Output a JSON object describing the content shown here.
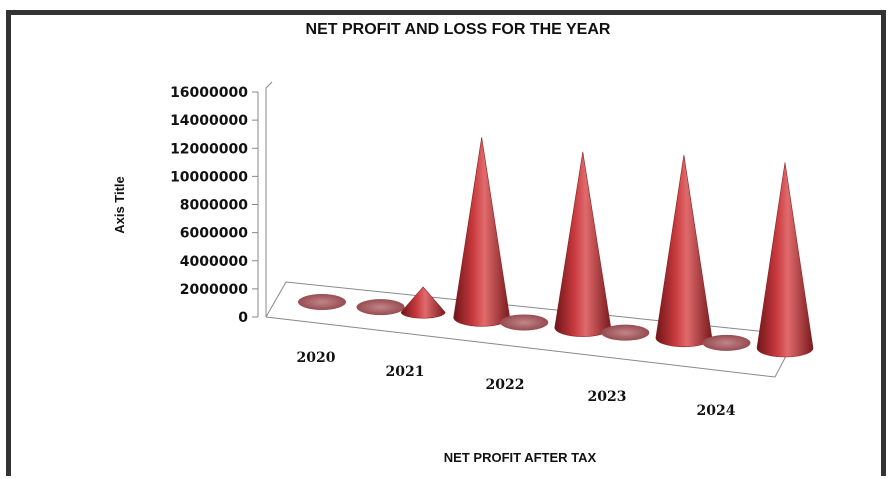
{
  "chart_data": {
    "type": "bar",
    "subtype": "3d-cone",
    "title": "NET PROFIT AND LOSS FOR THE  YEAR",
    "xlabel": "NET PROFIT AFTER TAX",
    "ylabel": "Axis Title",
    "categories": [
      "2020",
      "2021",
      "2022",
      "2023",
      "2024"
    ],
    "series": [
      {
        "values": [
          0,
          1800000,
          0,
          0,
          0
        ]
      },
      {
        "values": [
          0,
          12800000,
          12500000,
          13000000,
          13200000
        ]
      }
    ],
    "ylim": [
      0,
      16000000
    ],
    "yticks": [
      "16000000",
      "14000000",
      "12000000",
      "10000000",
      "8000000",
      "6000000",
      "4000000",
      "2000000",
      "0"
    ],
    "grid": false,
    "legend": "none",
    "colors": {
      "cone": "#b83236",
      "base": "#9a4e52",
      "axis": "#888888"
    }
  }
}
